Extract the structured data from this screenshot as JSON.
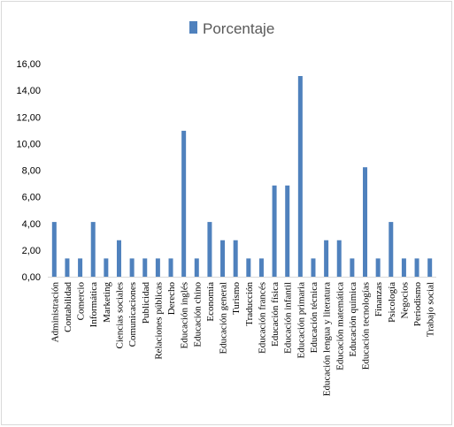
{
  "chart_data": {
    "type": "bar",
    "legend": {
      "position": "top"
    },
    "series": [
      {
        "name": "Porcentaje",
        "color": "#4f81bd",
        "values": [
          4.11,
          1.37,
          1.37,
          4.11,
          1.37,
          2.74,
          1.37,
          1.37,
          1.37,
          1.37,
          10.96,
          1.37,
          4.11,
          2.74,
          2.74,
          1.37,
          1.37,
          6.85,
          6.85,
          15.07,
          1.37,
          2.74,
          2.74,
          1.37,
          8.22,
          1.37,
          4.11,
          1.37,
          1.37,
          1.37
        ]
      }
    ],
    "categories": [
      "Administración",
      "Contabilidad",
      "Comercio",
      "Informática",
      "Marketing",
      "Ciencias sociales",
      "Comunicaciones",
      "Publicidad",
      "Relaciones públicas",
      "Derecho",
      "Educación inglés",
      "Educación chino",
      "Economía",
      "Educación general",
      "Turismo",
      "Traducción",
      "Educación francés",
      "Educación física",
      "Educación infantil",
      "Educación primaria",
      "Educación técnica",
      "Educación lengua y literatura",
      "Educación matemática",
      "Educación química",
      "Educación tecnologías",
      "Finanzas",
      "Psicología",
      "Negocios",
      "Periodismo",
      "Trabajo social"
    ],
    "ylim": [
      0,
      16
    ],
    "yticks": [
      "0,00",
      "2,00",
      "4,00",
      "6,00",
      "8,00",
      "10,00",
      "12,00",
      "14,00",
      "16,00"
    ],
    "grid": false
  }
}
